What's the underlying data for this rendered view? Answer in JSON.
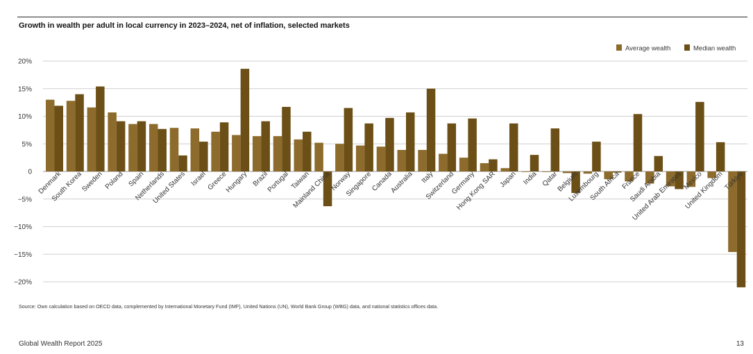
{
  "chart_data": {
    "type": "bar",
    "title": "Growth in wealth per adult in local currency in 2023–2024, net of inflation, selected markets",
    "xlabel": "",
    "ylabel": "",
    "ylim": [
      -22,
      20
    ],
    "yticks": [
      20,
      15,
      10,
      5,
      0,
      -5,
      -10,
      -15,
      -20
    ],
    "ytick_labels": [
      "20%",
      "15%",
      "10%",
      "5%",
      "0",
      "−5%",
      "−10%",
      "−15%",
      "−20%"
    ],
    "grid": true,
    "legend_position": "top-right",
    "categories": [
      "Denmark",
      "South Korea",
      "Sweden",
      "Poland",
      "Spain",
      "Netherlands",
      "United States",
      "Israel",
      "Greece",
      "Hungary",
      "Brazil",
      "Portugal",
      "Taiwan",
      "Mainland China",
      "Norway",
      "Singapore",
      "Canada",
      "Australia",
      "Italy",
      "Switzerland",
      "Germany",
      "Hong Kong SAR",
      "Japan",
      "India",
      "Qatar",
      "Belgium",
      "Luxembourg",
      "South Africa",
      "France",
      "Saudi Arabia",
      "United Arab Emirates",
      "Mexico",
      "United Kingdom",
      "Türkiye"
    ],
    "series": [
      {
        "name": "Average wealth",
        "color": "#8c6b2c",
        "values": [
          13.0,
          12.8,
          11.6,
          10.7,
          8.6,
          8.6,
          7.9,
          7.8,
          7.2,
          6.6,
          6.4,
          6.4,
          5.8,
          5.2,
          5.0,
          4.7,
          4.5,
          3.9,
          3.9,
          3.2,
          2.5,
          1.5,
          0.6,
          -0.1,
          -0.1,
          -0.3,
          -0.4,
          -1.4,
          -1.8,
          -2.2,
          -2.7,
          -2.8,
          -1.2,
          -14.6
        ]
      },
      {
        "name": "Median wealth",
        "color": "#6b4f16",
        "values": [
          11.9,
          14.0,
          15.4,
          9.1,
          9.1,
          7.7,
          2.9,
          5.4,
          8.9,
          18.6,
          9.1,
          11.7,
          7.2,
          -6.3,
          11.5,
          8.7,
          9.7,
          10.7,
          15.0,
          8.7,
          9.6,
          2.2,
          8.7,
          3.0,
          7.8,
          -3.9,
          5.4,
          -0.2,
          10.4,
          2.8,
          -3.2,
          12.6,
          5.3,
          -21.0
        ]
      }
    ]
  },
  "source_text": "Source: Own calculation based on OECD data, complemented by International Monetary Fund (IMF), United Nations (UN), World Bank Group (WBG) data, and national statistics offices data.",
  "footer": {
    "report": "Global Wealth Report 2025",
    "page": "13"
  }
}
